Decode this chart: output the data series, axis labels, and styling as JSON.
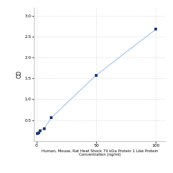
{
  "x_values": [
    0.78,
    1.56,
    3.13,
    6.25,
    12.5,
    50,
    100
  ],
  "y_values": [
    0.17,
    0.2,
    0.24,
    0.3,
    0.56,
    1.58,
    2.68
  ],
  "line_color": "#a8c8e8",
  "marker_color": "#1f3d7a",
  "marker_size": 12,
  "xlabel_line1": "Human, Mouse, Rat Heat Shock 70 kDa Protein 1 Like Protein",
  "xlabel_line2": "Concentration (ng/ml)",
  "ylabel": "OD",
  "xlim": [
    -2,
    108
  ],
  "ylim": [
    0,
    3.2
  ],
  "yticks": [
    0.5,
    1.0,
    1.5,
    2.0,
    2.5,
    3.0
  ],
  "xticks": [
    0,
    50,
    100
  ],
  "grid_color": "#e0e0e0",
  "background_color": "#ffffff",
  "tick_fontsize": 4.5,
  "label_fontsize": 4.0,
  "ylabel_fontsize": 5.5
}
